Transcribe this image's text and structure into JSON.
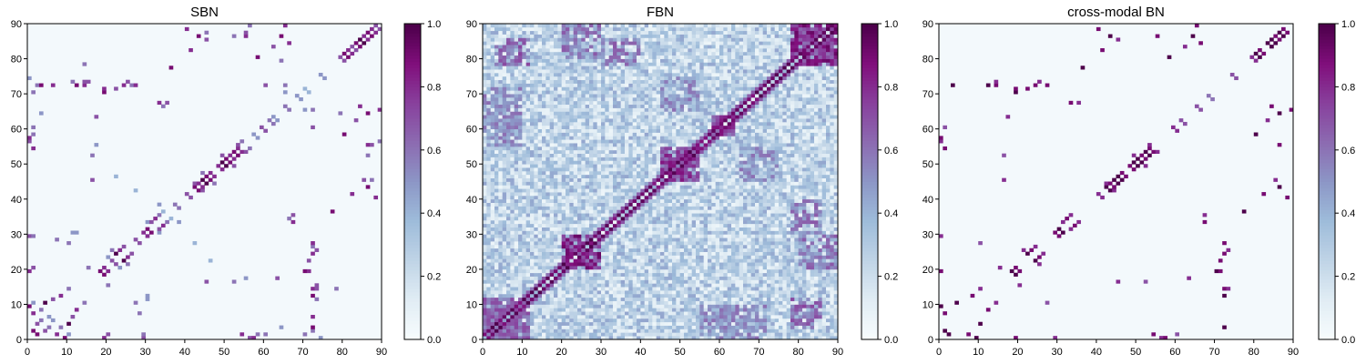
{
  "chart_data": [
    {
      "type": "heatmap",
      "title": "SBN",
      "xlim": [
        0,
        90
      ],
      "ylim": [
        0,
        90
      ],
      "x_ticks": [
        0,
        10,
        20,
        30,
        40,
        50,
        60,
        70,
        80,
        90
      ],
      "y_ticks": [
        0,
        10,
        20,
        30,
        40,
        50,
        60,
        70,
        80,
        90
      ],
      "colorbar": {
        "min": 0.0,
        "max": 1.0,
        "ticks": [
          "0.0",
          "0.2",
          "0.4",
          "0.6",
          "0.8",
          "1.0"
        ]
      },
      "colormap": "BuPu",
      "matrix_size": 90,
      "symmetric": true,
      "background_value": 0.02,
      "cells": [
        [
          2,
          1,
          0.9
        ],
        [
          4,
          2,
          0.7
        ],
        [
          7,
          1,
          0.8
        ],
        [
          8,
          3,
          0.6
        ],
        [
          10,
          4,
          1.0
        ],
        [
          11,
          6,
          0.7
        ],
        [
          12,
          8,
          0.8
        ],
        [
          14,
          10,
          0.6
        ],
        [
          9,
          0,
          0.9
        ],
        [
          6,
          5,
          0.5
        ],
        [
          19,
          18,
          0.9
        ],
        [
          20,
          19,
          0.8
        ],
        [
          22,
          21,
          0.7
        ],
        [
          24,
          22,
          1.0
        ],
        [
          25,
          23,
          0.8
        ],
        [
          26,
          24,
          0.7
        ],
        [
          25,
          21,
          0.6
        ],
        [
          23,
          20,
          0.5
        ],
        [
          28,
          27,
          0.7
        ],
        [
          30,
          29,
          0.8
        ],
        [
          31,
          30,
          0.9
        ],
        [
          33,
          31,
          0.7
        ],
        [
          34,
          32,
          0.8
        ],
        [
          35,
          33,
          0.6
        ],
        [
          33,
          30,
          0.5
        ],
        [
          36,
          34,
          0.4
        ],
        [
          38,
          37,
          0.6
        ],
        [
          41,
          40,
          0.7
        ],
        [
          43,
          42,
          0.9
        ],
        [
          44,
          43,
          0.8
        ],
        [
          45,
          44,
          1.0
        ],
        [
          46,
          45,
          0.9
        ],
        [
          47,
          46,
          0.8
        ],
        [
          44,
          42,
          0.7
        ],
        [
          47,
          44,
          0.6
        ],
        [
          49,
          48,
          0.8
        ],
        [
          50,
          49,
          1.0
        ],
        [
          51,
          50,
          0.9
        ],
        [
          52,
          51,
          0.8
        ],
        [
          53,
          52,
          0.9
        ],
        [
          54,
          53,
          0.8
        ],
        [
          55,
          53,
          0.7
        ],
        [
          52,
          49,
          0.7
        ],
        [
          56,
          54,
          0.6
        ],
        [
          58,
          57,
          0.5
        ],
        [
          60,
          59,
          0.7
        ],
        [
          62,
          61,
          0.6
        ],
        [
          63,
          62,
          0.5
        ],
        [
          66,
          65,
          0.6
        ],
        [
          69,
          68,
          0.5
        ],
        [
          71,
          70,
          0.4
        ],
        [
          75,
          74,
          0.5
        ],
        [
          80,
          79,
          0.7
        ],
        [
          81,
          80,
          0.9
        ],
        [
          82,
          81,
          0.8
        ],
        [
          83,
          82,
          0.7
        ],
        [
          84,
          83,
          0.9
        ],
        [
          85,
          84,
          1.0
        ],
        [
          86,
          85,
          0.8
        ],
        [
          87,
          86,
          0.9
        ],
        [
          88,
          87,
          0.8
        ],
        [
          89,
          88,
          0.7
        ],
        [
          19,
          0,
          0.8
        ],
        [
          20,
          1,
          0.7
        ],
        [
          20,
          15,
          0.6
        ],
        [
          29,
          0,
          0.7
        ],
        [
          29,
          1,
          0.6
        ],
        [
          30,
          11,
          0.5
        ],
        [
          72,
          3,
          0.9
        ],
        [
          72,
          6,
          0.8
        ],
        [
          72,
          12,
          0.9
        ],
        [
          72,
          14,
          0.8
        ],
        [
          73,
          15,
          0.7
        ],
        [
          71,
          22,
          0.7
        ],
        [
          72,
          24,
          0.8
        ],
        [
          73,
          25,
          0.7
        ],
        [
          72,
          26,
          0.6
        ],
        [
          67,
          33,
          0.8
        ],
        [
          67,
          35,
          0.7
        ],
        [
          66,
          34,
          0.6
        ],
        [
          77,
          36,
          0.9
        ],
        [
          82,
          41,
          0.8
        ],
        [
          86,
          43,
          0.9
        ],
        [
          87,
          45,
          0.6
        ],
        [
          86,
          55,
          0.8
        ],
        [
          80,
          58,
          0.9
        ],
        [
          83,
          62,
          0.7
        ],
        [
          79,
          64,
          0.6
        ],
        [
          72,
          60,
          0.7
        ],
        [
          65,
          70,
          0.5
        ],
        [
          65,
          72,
          0.6
        ],
        [
          66,
          84,
          0.8
        ],
        [
          64,
          86,
          0.9
        ],
        [
          65,
          89,
          0.8
        ],
        [
          45,
          85,
          0.7
        ],
        [
          40,
          88,
          0.8
        ],
        [
          52,
          86,
          0.6
        ],
        [
          55,
          87,
          0.7
        ],
        [
          56,
          89,
          0.6
        ],
        [
          27,
          72,
          0.8
        ],
        [
          25,
          73,
          0.7
        ],
        [
          19,
          70,
          0.9
        ],
        [
          19,
          71,
          0.8
        ],
        [
          14,
          73,
          0.7
        ],
        [
          14,
          78,
          0.6
        ],
        [
          11,
          73,
          0.6
        ],
        [
          1,
          54,
          0.8
        ],
        [
          0,
          56,
          0.7
        ],
        [
          1,
          60,
          0.6
        ],
        [
          3,
          64,
          0.5
        ],
        [
          1,
          70,
          0.6
        ],
        [
          2,
          72,
          0.6
        ],
        [
          0,
          74,
          0.5
        ],
        [
          16,
          45,
          0.7
        ],
        [
          16,
          52,
          0.6
        ],
        [
          17,
          55,
          0.5
        ],
        [
          10,
          27,
          0.6
        ],
        [
          12,
          30,
          0.5
        ],
        [
          7,
          28,
          0.6
        ],
        [
          1,
          10,
          0.5
        ],
        [
          5,
          3,
          0.6
        ],
        [
          63,
          17,
          0.7
        ],
        [
          57,
          0,
          0.8
        ],
        [
          58,
          1,
          0.6
        ],
        [
          46,
          22,
          0.4
        ],
        [
          42,
          27,
          0.4
        ],
        [
          33,
          38,
          0.5
        ]
      ]
    },
    {
      "type": "heatmap",
      "title": "FBN",
      "xlim": [
        0,
        90
      ],
      "ylim": [
        0,
        90
      ],
      "x_ticks": [
        0,
        10,
        20,
        30,
        40,
        50,
        60,
        70,
        80,
        90
      ],
      "y_ticks": [
        0,
        10,
        20,
        30,
        40,
        50,
        60,
        70,
        80,
        90
      ],
      "colorbar": {
        "min": 0.0,
        "max": 1.0,
        "ticks": [
          "0.0",
          "0.2",
          "0.4",
          "0.6",
          "0.8",
          "1.0"
        ]
      },
      "colormap": "BuPu",
      "matrix_size": 90,
      "symmetric": true,
      "background_range": [
        0.05,
        0.45
      ],
      "diagonal_bands": [
        {
          "from": 0,
          "to": 90,
          "offset": 1,
          "value": 1.0
        },
        {
          "from": 0,
          "to": 90,
          "offset": 2,
          "value": 0.7
        }
      ],
      "blocks": [
        {
          "x0": 20,
          "x1": 30,
          "y0": 20,
          "y1": 30,
          "value": 0.75
        },
        {
          "x0": 45,
          "x1": 55,
          "y0": 45,
          "y1": 55,
          "value": 0.7
        },
        {
          "x0": 58,
          "x1": 64,
          "y0": 58,
          "y1": 64,
          "value": 0.7
        },
        {
          "x0": 78,
          "x1": 90,
          "y0": 78,
          "y1": 90,
          "value": 0.75
        },
        {
          "x0": 0,
          "x1": 12,
          "y0": 0,
          "y1": 12,
          "value": 0.6
        },
        {
          "x0": 3,
          "x1": 12,
          "y0": 78,
          "y1": 86,
          "value": 0.6
        },
        {
          "x0": 30,
          "x1": 40,
          "y0": 78,
          "y1": 86,
          "value": 0.55
        },
        {
          "x0": 60,
          "x1": 72,
          "y0": 0,
          "y1": 10,
          "value": 0.5
        },
        {
          "x0": 80,
          "x1": 90,
          "y0": 20,
          "y1": 30,
          "value": 0.55
        },
        {
          "x0": 0,
          "x1": 10,
          "y0": 55,
          "y1": 65,
          "value": 0.5
        },
        {
          "x0": 65,
          "x1": 75,
          "y0": 45,
          "y1": 55,
          "value": 0.5
        }
      ]
    },
    {
      "type": "heatmap",
      "title": "cross-modal BN",
      "xlim": [
        0,
        90
      ],
      "ylim": [
        0,
        90
      ],
      "x_ticks": [
        0,
        10,
        20,
        30,
        40,
        50,
        60,
        70,
        80,
        90
      ],
      "y_ticks": [
        0,
        10,
        20,
        30,
        40,
        50,
        60,
        70,
        80,
        90
      ],
      "colorbar": {
        "min": 0.0,
        "max": 1.0,
        "ticks": [
          "0.0",
          "0.2",
          "0.4",
          "0.6",
          "0.8",
          "1.0"
        ]
      },
      "colormap": "BuPu",
      "matrix_size": 90,
      "symmetric": true,
      "background_value": 0.02,
      "cells": [
        [
          2,
          1,
          1.0
        ],
        [
          7,
          1,
          0.9
        ],
        [
          10,
          4,
          1.0
        ],
        [
          12,
          8,
          0.9
        ],
        [
          14,
          10,
          0.8
        ],
        [
          9,
          0,
          1.0
        ],
        [
          19,
          18,
          1.0
        ],
        [
          20,
          19,
          0.9
        ],
        [
          24,
          22,
          1.0
        ],
        [
          25,
          23,
          0.9
        ],
        [
          26,
          24,
          0.8
        ],
        [
          25,
          21,
          0.8
        ],
        [
          30,
          29,
          0.9
        ],
        [
          31,
          30,
          1.0
        ],
        [
          33,
          31,
          0.8
        ],
        [
          34,
          32,
          0.9
        ],
        [
          35,
          33,
          0.8
        ],
        [
          41,
          40,
          0.8
        ],
        [
          43,
          42,
          1.0
        ],
        [
          44,
          43,
          0.9
        ],
        [
          45,
          44,
          1.0
        ],
        [
          46,
          45,
          1.0
        ],
        [
          47,
          46,
          0.9
        ],
        [
          44,
          42,
          0.8
        ],
        [
          49,
          48,
          0.9
        ],
        [
          50,
          49,
          1.0
        ],
        [
          51,
          50,
          1.0
        ],
        [
          52,
          51,
          0.9
        ],
        [
          53,
          52,
          1.0
        ],
        [
          54,
          53,
          0.9
        ],
        [
          55,
          53,
          0.8
        ],
        [
          52,
          49,
          0.8
        ],
        [
          60,
          59,
          0.8
        ],
        [
          62,
          61,
          0.7
        ],
        [
          66,
          65,
          0.7
        ],
        [
          69,
          68,
          0.6
        ],
        [
          75,
          74,
          0.7
        ],
        [
          80,
          79,
          0.8
        ],
        [
          81,
          80,
          1.0
        ],
        [
          82,
          81,
          0.9
        ],
        [
          84,
          83,
          1.0
        ],
        [
          85,
          84,
          1.0
        ],
        [
          86,
          85,
          0.9
        ],
        [
          87,
          86,
          1.0
        ],
        [
          88,
          87,
          0.9
        ],
        [
          19,
          0,
          0.9
        ],
        [
          20,
          15,
          0.8
        ],
        [
          29,
          0,
          0.8
        ],
        [
          72,
          3,
          1.0
        ],
        [
          72,
          12,
          1.0
        ],
        [
          72,
          14,
          0.9
        ],
        [
          71,
          22,
          0.9
        ],
        [
          72,
          24,
          0.9
        ],
        [
          73,
          25,
          0.8
        ],
        [
          67,
          33,
          0.9
        ],
        [
          67,
          35,
          0.8
        ],
        [
          77,
          36,
          1.0
        ],
        [
          82,
          41,
          0.9
        ],
        [
          86,
          43,
          1.0
        ],
        [
          86,
          55,
          0.9
        ],
        [
          80,
          58,
          1.0
        ],
        [
          83,
          62,
          0.8
        ],
        [
          65,
          89,
          0.9
        ],
        [
          64,
          86,
          1.0
        ],
        [
          66,
          84,
          0.9
        ],
        [
          40,
          88,
          0.9
        ],
        [
          45,
          85,
          0.8
        ],
        [
          27,
          72,
          0.9
        ],
        [
          19,
          70,
          1.0
        ],
        [
          19,
          71,
          0.9
        ],
        [
          14,
          73,
          0.8
        ],
        [
          1,
          54,
          0.9
        ],
        [
          0,
          56,
          0.8
        ],
        [
          1,
          60,
          0.7
        ],
        [
          16,
          45,
          0.8
        ],
        [
          16,
          52,
          0.7
        ],
        [
          10,
          27,
          0.7
        ],
        [
          63,
          17,
          0.8
        ],
        [
          57,
          0,
          0.9
        ]
      ]
    }
  ]
}
